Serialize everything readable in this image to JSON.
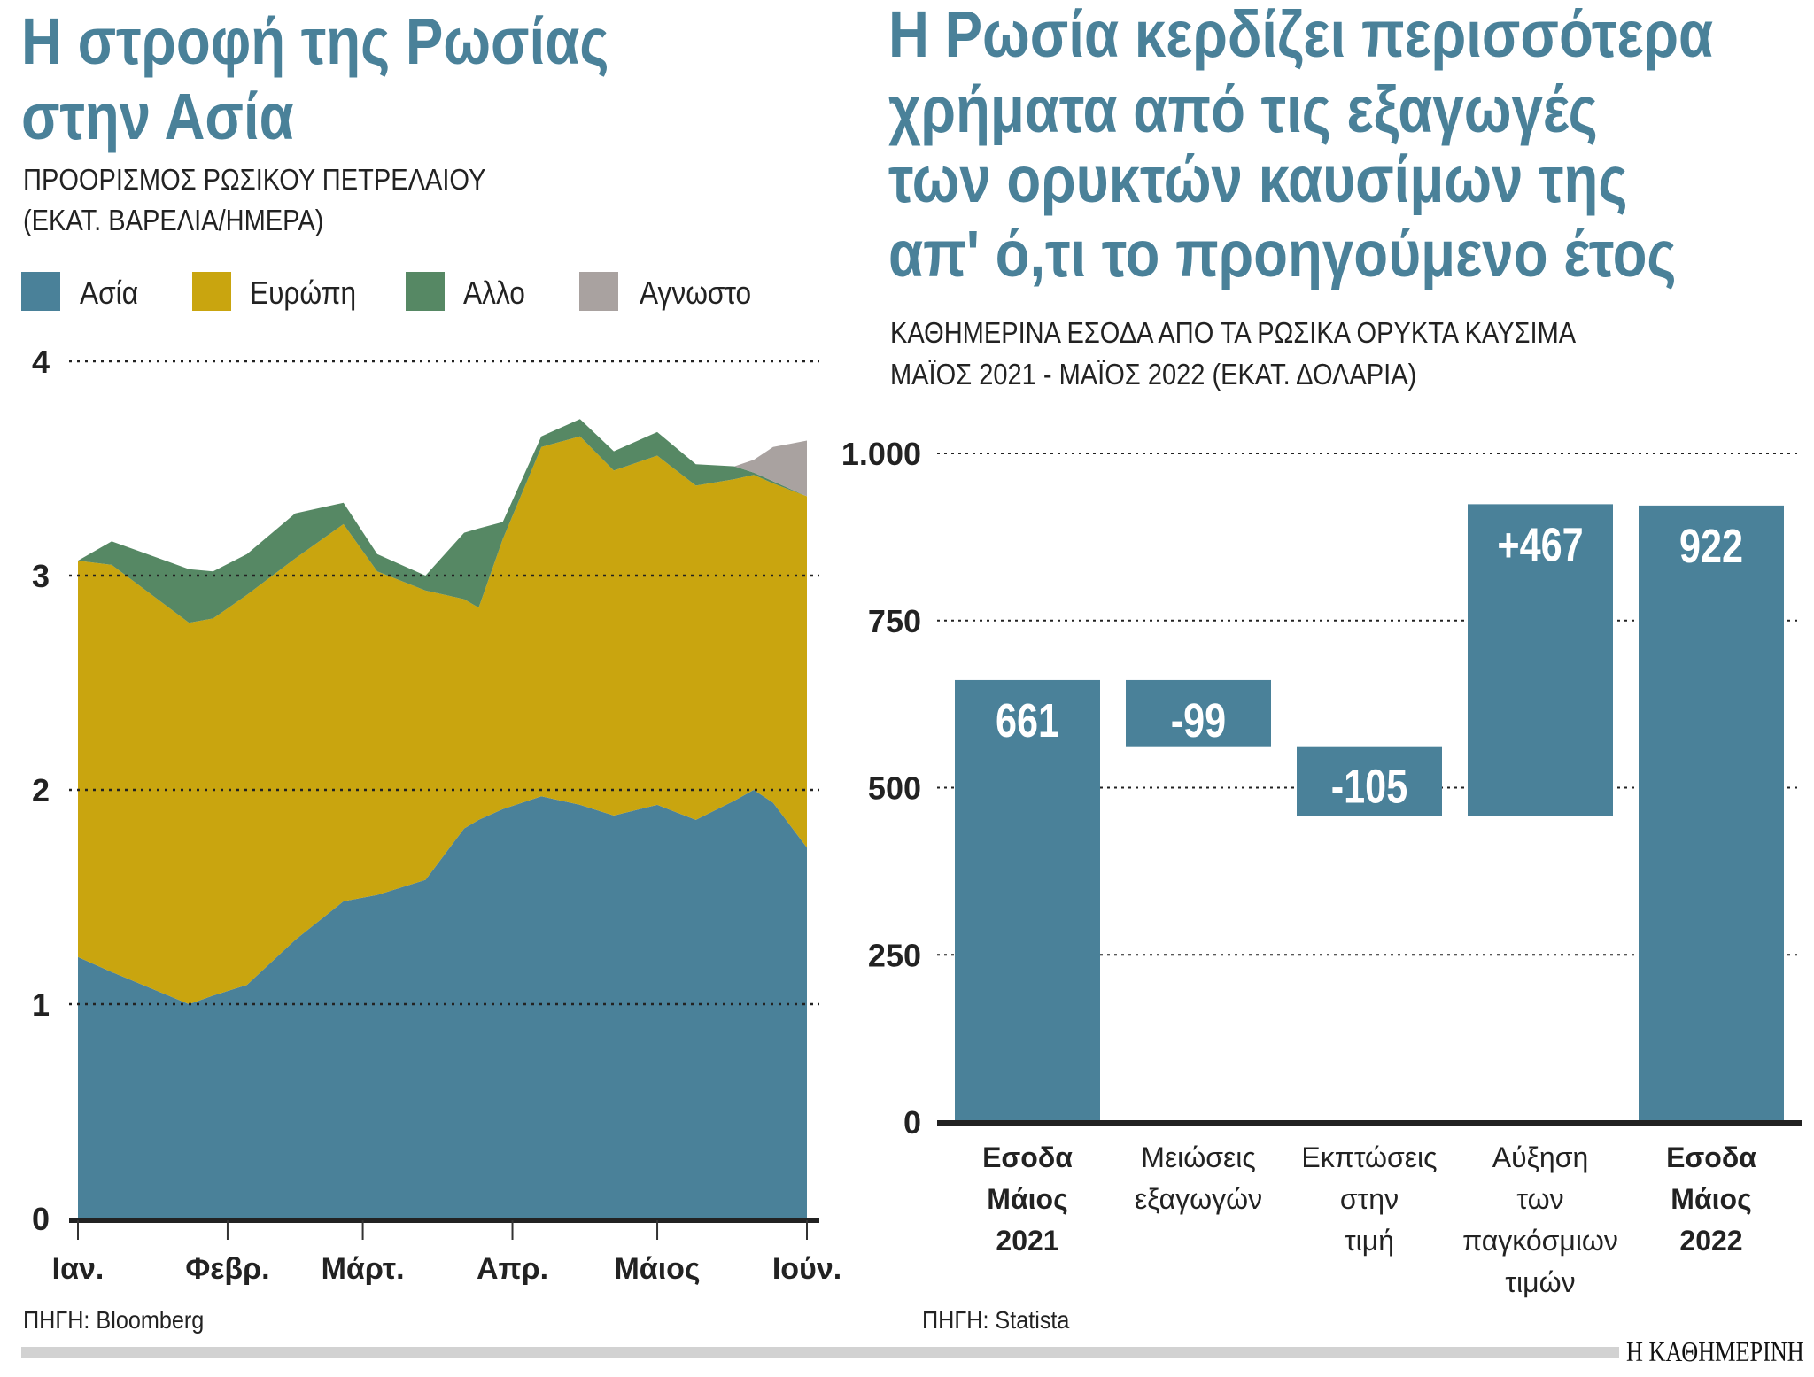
{
  "chart_data": [
    {
      "type": "area",
      "stacked": true,
      "title_lines": [
        "Η στροφή της Ρωσίας",
        "στην Ασία"
      ],
      "subtitle_lines": [
        "ΠΡΟΟΡΙΣΜΟΣ ΡΩΣΙΚΟΥ ΠΕΤΡΕΛΑΙΟΥ",
        "(ΕΚΑΤ. ΒΑΡΕΛΙΑ/ΗΜΕΡΑ)"
      ],
      "legend": [
        {
          "label": "Ασία",
          "color": "#4a8199"
        },
        {
          "label": "Ευρώπη",
          "color": "#c9a50f"
        },
        {
          "label": "Αλλο",
          "color": "#568864"
        },
        {
          "label": "Αγνωστο",
          "color": "#a9a2a0"
        }
      ],
      "legend_position": "top",
      "x": [
        "01-01",
        "01-08",
        "01-24",
        "01-29",
        "02-05",
        "02-15",
        "02-25",
        "03-04",
        "03-14",
        "03-22",
        "03-25",
        "03-30",
        "04-07",
        "04-15",
        "04-22",
        "05-01",
        "05-09",
        "05-17",
        "05-21",
        "05-25",
        "06-01"
      ],
      "series": [
        {
          "name": "Ασία",
          "values": [
            1.22,
            1.15,
            1.0,
            1.04,
            1.09,
            1.3,
            1.48,
            1.51,
            1.58,
            1.82,
            1.86,
            1.91,
            1.97,
            1.93,
            1.88,
            1.93,
            1.86,
            1.95,
            2.0,
            1.94,
            1.73
          ]
        },
        {
          "name": "Ευρώπη",
          "values": [
            1.85,
            1.9,
            1.78,
            1.76,
            1.82,
            1.78,
            1.76,
            1.51,
            1.35,
            1.07,
            0.99,
            1.26,
            1.63,
            1.72,
            1.61,
            1.63,
            1.56,
            1.5,
            1.47,
            1.49,
            1.64
          ]
        },
        {
          "name": "Αλλο",
          "values": [
            0,
            0.11,
            0.25,
            0.22,
            0.19,
            0.21,
            0.1,
            0.08,
            0.07,
            0.31,
            0.37,
            0.08,
            0.05,
            0.08,
            0.09,
            0.11,
            0.1,
            0.06,
            0.01,
            0.01,
            0
          ]
        },
        {
          "name": "Αγνωστο",
          "values": [
            0,
            0,
            0,
            0,
            0,
            0,
            0,
            0,
            0,
            0,
            0,
            0,
            0,
            0,
            0,
            0,
            0,
            0,
            0.06,
            0.16,
            0.26
          ]
        }
      ],
      "xticks": [
        {
          "date": "01-01",
          "label": "Ιαν."
        },
        {
          "date": "02-01",
          "label": "Φεβρ."
        },
        {
          "date": "03-01",
          "label": "Μάρτ."
        },
        {
          "date": "04-01",
          "label": "Απρ."
        },
        {
          "date": "05-01",
          "label": "Μάιος"
        },
        {
          "date": "06-01",
          "label": "Ιούν."
        }
      ],
      "yticks": [
        "0",
        "1",
        "2",
        "3",
        "4"
      ],
      "ylim": [
        0,
        4
      ],
      "grid": true,
      "source": "ΠΗΓΗ: Bloomberg"
    },
    {
      "type": "waterfall",
      "title_lines": [
        "Η Ρωσία κερδίζει περισσότερα",
        "χρήματα από τις εξαγωγές",
        "των ορυκτών καυσίμων της",
        "απ' ό,τι το προηγούμενο έτος"
      ],
      "subtitle_lines": [
        "ΚΑΘΗΜΕΡΙΝΑ ΕΣΟΔΑ ΑΠΟ ΤΑ ΡΩΣΙΚΑ ΟΡΥΚΤΑ ΚΑΥΣΙΜΑ",
        "ΜΑΪΟΣ 2021 - ΜΑΪΟΣ 2022 (ΕΚΑΤ. ΔΟΛΑΡΙΑ)"
      ],
      "bars": [
        {
          "label_lines": [
            "Εσοδα",
            "Μάιος",
            "2021"
          ],
          "value": 661,
          "value_label": "661",
          "kind": "total",
          "bold": true
        },
        {
          "label_lines": [
            "Μειώσεις",
            "εξαγωγών"
          ],
          "value": -99,
          "value_label": "-99",
          "kind": "delta",
          "bold": false
        },
        {
          "label_lines": [
            "Εκπτώσεις",
            "στην",
            "τιμή"
          ],
          "value": -105,
          "value_label": "-105",
          "kind": "delta",
          "bold": false
        },
        {
          "label_lines": [
            "Αύξηση",
            "των",
            "παγκόσμιων",
            "τιμών"
          ],
          "value": 467,
          "value_label": "+467",
          "kind": "delta",
          "bold": false
        },
        {
          "label_lines": [
            "Εσοδα",
            "Μάιος",
            "2022"
          ],
          "value": 922,
          "value_label": "922",
          "kind": "total",
          "bold": true
        }
      ],
      "bar_color": "#4a8199",
      "yticks": [
        {
          "value": 0,
          "label": "0"
        },
        {
          "value": 250,
          "label": "250"
        },
        {
          "value": 500,
          "label": "500"
        },
        {
          "value": 750,
          "label": "750"
        },
        {
          "value": 1000,
          "label": "1.000"
        }
      ],
      "ylim": [
        0,
        1000
      ],
      "grid": true,
      "source": "ΠΗΓΗ: Statista"
    }
  ],
  "footer": {
    "logo": "Η ΚΑΘΗΜΕΡΙΝΗ"
  }
}
